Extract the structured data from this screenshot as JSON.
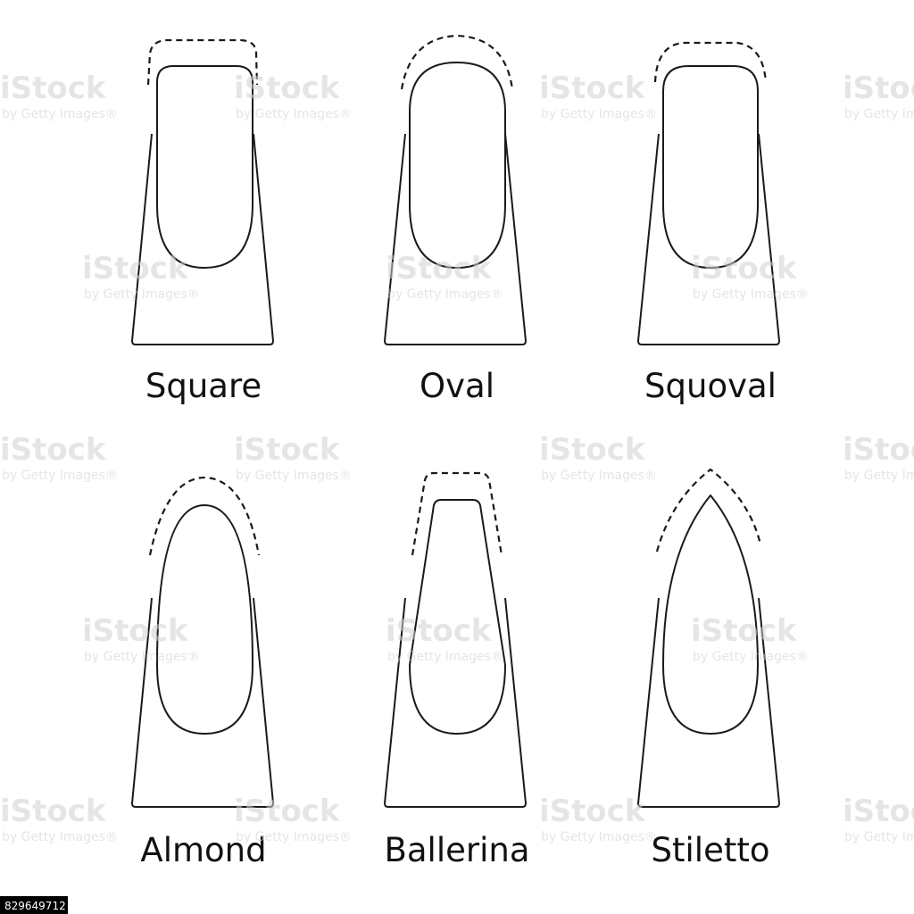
{
  "shapes": [
    {
      "name": "Square"
    },
    {
      "name": "Oval"
    },
    {
      "name": "Squoval"
    },
    {
      "name": "Almond"
    },
    {
      "name": "Ballerina"
    },
    {
      "name": "Stiletto"
    }
  ],
  "watermark": {
    "logo": "iStock",
    "subtitle": "by Getty Images®"
  },
  "image_id": "829649712"
}
